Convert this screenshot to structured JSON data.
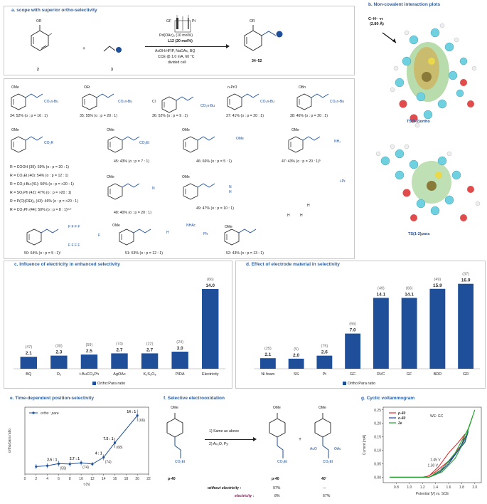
{
  "colors": {
    "accent": "#1f4f99",
    "title": "#2c5d9e",
    "alkene": "#1f4f99",
    "bar": "#1f4f99",
    "red": "#e03030",
    "green": "#22a02a",
    "purple": "#8b1a5c"
  },
  "panel_a": {
    "title": "a. scope with superior ortho-selectivity",
    "reactant1_label": "2",
    "reactant1_group": "OR",
    "reactant2_label": "3",
    "plus": "+",
    "product_label": "34–52",
    "product_group": "OR",
    "electrode_left": "GF",
    "electrode_right": "Pt",
    "conditions": [
      "Pd(OAc)₂ (10 mol%)",
      "L12 (20 mol%)",
      "AcOH:HFIP, NaOAc, BQ",
      "CCE @ 1.0 mA, 60 °C",
      "divided cell"
    ]
  },
  "panel_b": {
    "title": "b. Non-covalent interaction plots",
    "annotation_line1": "C–H···π",
    "annotation_line2": "(2.80 Å)",
    "ts_top": "TS(1-2)ortho",
    "ts_bottom": "TS(1-2)para"
  },
  "compounds": [
    {
      "sub": "OMe",
      "chain": "CO₂n-Bu",
      "label": "34: 52% (o : p = 16 : 1)"
    },
    {
      "sub": "OEt",
      "chain": "CO₂n-Bu",
      "label": "35: 55% (o : p = 20 : 1)"
    },
    {
      "sub": "",
      "chain": "CO₂n-Bu",
      "label": "36: 52% (o : p = 9 : 1)"
    },
    {
      "sub": "n-PrO",
      "chain": "CO₂n-Bu",
      "label": "37: 41% (o : p = 20 : 1)"
    },
    {
      "sub": "OBn",
      "chain": "CO₂n-Bu",
      "label": "38: 46% (o : p = 20 : 1)"
    },
    {
      "sub": "OMe",
      "chain": "CO₂Et",
      "label": "45: 43% (o : p = 7 : 1)"
    },
    {
      "sub": "OMe",
      "chain": "",
      "label": "46: 66% (o : p = 5 : 1)"
    },
    {
      "sub": "OMe",
      "chain": "NH₂",
      "label": "47: 43% (o : p = 20 : 1)ᵇ"
    },
    {
      "sub": "OMe",
      "chain": "",
      "label": "48: 40% (o : p = 20 : 1)"
    },
    {
      "sub": "OMe",
      "chain": "",
      "label": "49: 47% (o : p = 10 : 1)"
    },
    {
      "sub": "",
      "chain": "",
      "label": "50: 64% (o : p = 5 : 1)ᶜ"
    },
    {
      "sub": "OMe",
      "chain": "",
      "label": "51: 53% (o : p = 12 : 1)"
    },
    {
      "sub": "OMe",
      "chain": "",
      "label": "52: 43% (o : p = 13 : 1)"
    }
  ],
  "compound_36_sub": "Cl",
  "compound_46_tail": "OMe",
  "compound_48_n": "N",
  "compound_49_n": "N",
  "compound_49_h": "H",
  "compound_51_extra": [
    "NHAc",
    "Ph",
    "H"
  ],
  "compound_52_extra": [
    "i-Pr",
    "H",
    "H",
    "H"
  ],
  "compound_50_f": [
    "F F F F",
    "F",
    "F F F F"
  ],
  "compound_47_n": "NH₂",
  "r_group_core": "CO₂R",
  "r_list": [
    "R = COOH (39):   59% (o : p = 20 : 1)",
    "R = CO₂Et (40):   54% (o : p = 12 : 1)",
    "R = CO₂t-Bu (41):   50% (o : p = >20 : 1)",
    "R = SO₂Ph (42):   47% (o : p = >20 : 1)",
    "R = P(O)(OEt)₂ (43):  46% (o : p = >20 : 1)",
    "R = CO₂Ph (44):   50% (o : p = 8 : 1)ᵃ·ᵇ"
  ],
  "panel_c": {
    "title": "c. Influence of electricity in enhanced selectivity",
    "legend": "Ortho:Para ratio",
    "chart_data": {
      "type": "bar",
      "categories": [
        "BQ",
        "O₂",
        "t-BuCO₃Ph",
        "AgOAc",
        "K₂S₂O₈",
        "PIDA",
        "Electricity"
      ],
      "values": [
        2.1,
        2.3,
        2.5,
        2.7,
        2.7,
        3.0,
        14.0
      ],
      "counts": [
        "(47)",
        "(30)",
        "(59)",
        "(74)",
        "(22)",
        "(24)",
        "(66)"
      ],
      "ylim": [
        0,
        15
      ]
    }
  },
  "panel_d": {
    "title": "d. Effect of electrode material in selectivity",
    "legend": "Ortho:Para ratio",
    "chart_data": {
      "type": "bar",
      "categories": [
        "Ni foam",
        "SS",
        "Pt",
        "GC",
        "RVC",
        "GF",
        "BDD",
        "GR"
      ],
      "values": [
        2.1,
        2.0,
        2.6,
        7.0,
        14.1,
        14.1,
        15.9,
        16.9
      ],
      "counts": [
        "(25)",
        "(5)",
        "(75)",
        "(66)",
        "(49)",
        "(66)",
        "(49)",
        "(37)"
      ],
      "ylim": [
        0,
        17
      ]
    }
  },
  "panel_e": {
    "title": "e. Time-dependent position-selectivity",
    "legend": "ortho : para",
    "ylabel": "ortho/para ratio",
    "xlabel": "t (h)",
    "chart_data": {
      "type": "line",
      "x": [
        2,
        4,
        6,
        8,
        10,
        12,
        14,
        16,
        20
      ],
      "y": [
        1.8,
        2.0,
        2.5,
        2.4,
        2.7,
        2.4,
        4.0,
        7.5,
        14.0
      ],
      "err": [
        0.6,
        0.6,
        0.7,
        0.6,
        0.6,
        0.5,
        0.7,
        1.2,
        1.4
      ],
      "xticks": [
        "0",
        "2",
        "4",
        "6",
        "8",
        "10",
        "12",
        "14",
        "16",
        "18",
        "20",
        "22"
      ],
      "xlim": [
        0,
        22
      ],
      "ylim": [
        0,
        16
      ],
      "annotations": [
        {
          "x": 6,
          "y": 2.5,
          "label": "2.5 : 1",
          "count": "(59)"
        },
        {
          "x": 10,
          "y": 2.7,
          "label": "2.7 : 1",
          "count": "(74)"
        },
        {
          "x": 14,
          "y": 4.0,
          "label": "4 : 1",
          "count": "(74)"
        },
        {
          "x": 16,
          "y": 7.5,
          "label": "7.5 : 1",
          "count": "(68)"
        },
        {
          "x": 20,
          "y": 14.0,
          "label": "14 : 1",
          "count": "(66)"
        }
      ]
    }
  },
  "panel_f": {
    "title": "f. Selective electrooxidation",
    "step1": "1) Same as above",
    "step2": "2) Ac₂O, Py",
    "start_label": "p-40",
    "prod1_label": "p-40",
    "prod2_label": "40'",
    "plus": "+",
    "row1_label": "without electricity :",
    "row1_v1": "97%",
    "row1_v2": "---",
    "row2_label": "electricity :",
    "row2_v1": "8%",
    "row2_v2": "67%",
    "sub_ome": "OMe",
    "sub_co2et": "CO₂Et",
    "sub_aco": "AcO",
    "sub_oac": "OAc"
  },
  "panel_g": {
    "title": "g. Cyclic voltammogram",
    "legend_note": "WE: GC",
    "series_names": [
      "p-40",
      "o-40",
      "2e"
    ],
    "annot1": "1.45 V",
    "annot2": "1.30 V",
    "ylabel": "Current [mA]",
    "xlabel": "Potential [V] vs. SCE",
    "chart_data": {
      "type": "line",
      "xlim": [
        0.6,
        2.1
      ],
      "ylim": [
        -0.02,
        0.26
      ],
      "xticks": [
        "0.8",
        "1.0",
        "1.2",
        "1.4",
        "1.6",
        "1.8",
        "2.0"
      ],
      "yticks": [
        "0.00",
        "0.05",
        "0.10",
        "0.15",
        "0.20",
        "0.25"
      ],
      "series": [
        {
          "name": "p-40",
          "color": "#e03030",
          "x": [
            0.7,
            1.2,
            1.3,
            1.45,
            1.6,
            1.75,
            1.85,
            1.8,
            1.6,
            1.4,
            1.25,
            0.7
          ],
          "y": [
            0.0,
            0.0,
            0.005,
            0.04,
            0.09,
            0.13,
            0.16,
            0.12,
            0.06,
            0.02,
            0.0,
            0.0
          ]
        },
        {
          "name": "o-40",
          "color": "#1f3f9f",
          "x": [
            0.7,
            1.3,
            1.45,
            1.6,
            1.75,
            1.9,
            1.85,
            1.65,
            1.45,
            1.3,
            0.7
          ],
          "y": [
            0.0,
            0.0,
            0.015,
            0.05,
            0.1,
            0.17,
            0.13,
            0.07,
            0.02,
            0.0,
            0.0
          ]
        },
        {
          "name": "2e",
          "color": "#22a02a",
          "x": [
            0.7,
            1.3,
            1.5,
            1.7,
            1.85,
            2.0,
            1.9,
            1.7,
            1.5,
            1.3,
            0.7
          ],
          "y": [
            0.0,
            0.0,
            0.02,
            0.07,
            0.14,
            0.25,
            0.18,
            0.09,
            0.03,
            0.0,
            0.0
          ]
        }
      ]
    }
  }
}
